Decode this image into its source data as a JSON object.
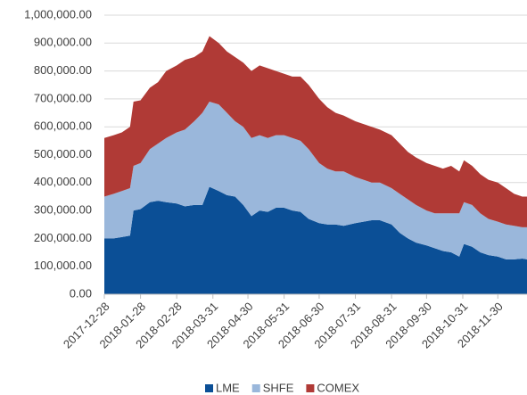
{
  "chart_data": {
    "type": "stacked_area",
    "x": [
      "2017-12-28",
      "2018-01-05",
      "2018-01-12",
      "2018-01-19",
      "2018-01-22",
      "2018-01-28",
      "2018-02-05",
      "2018-02-12",
      "2018-02-19",
      "2018-02-28",
      "2018-03-07",
      "2018-03-15",
      "2018-03-22",
      "2018-03-28",
      "2018-04-05",
      "2018-04-12",
      "2018-04-19",
      "2018-04-26",
      "2018-05-03",
      "2018-05-10",
      "2018-05-17",
      "2018-05-24",
      "2018-05-31",
      "2018-06-07",
      "2018-06-14",
      "2018-06-21",
      "2018-06-30",
      "2018-07-07",
      "2018-07-14",
      "2018-07-21",
      "2018-07-31",
      "2018-08-07",
      "2018-08-14",
      "2018-08-21",
      "2018-08-31",
      "2018-09-07",
      "2018-09-14",
      "2018-09-21",
      "2018-09-30",
      "2018-10-07",
      "2018-10-14",
      "2018-10-21",
      "2018-10-28",
      "2018-11-01",
      "2018-11-08",
      "2018-11-15",
      "2018-11-22",
      "2018-11-30",
      "2018-12-07",
      "2018-12-14",
      "2018-12-21",
      "2018-12-25"
    ],
    "series": [
      {
        "name": "LME",
        "color": "#0b4f96",
        "values": [
          200000,
          200000,
          205000,
          210000,
          300000,
          305000,
          330000,
          335000,
          330000,
          325000,
          315000,
          320000,
          320000,
          385000,
          370000,
          355000,
          350000,
          320000,
          280000,
          300000,
          295000,
          310000,
          310000,
          300000,
          295000,
          270000,
          255000,
          250000,
          250000,
          245000,
          255000,
          260000,
          265000,
          265000,
          250000,
          220000,
          200000,
          185000,
          175000,
          165000,
          155000,
          150000,
          135000,
          180000,
          170000,
          150000,
          140000,
          135000,
          125000,
          125000,
          128000,
          125000
        ]
      },
      {
        "name": "SHFE",
        "color": "#9ab7db",
        "values": [
          150000,
          160000,
          165000,
          170000,
          160000,
          165000,
          190000,
          205000,
          230000,
          255000,
          275000,
          300000,
          330000,
          305000,
          310000,
          295000,
          270000,
          280000,
          280000,
          270000,
          265000,
          260000,
          260000,
          260000,
          255000,
          250000,
          215000,
          200000,
          190000,
          195000,
          165000,
          150000,
          135000,
          135000,
          130000,
          140000,
          140000,
          135000,
          125000,
          125000,
          135000,
          140000,
          155000,
          150000,
          150000,
          140000,
          130000,
          125000,
          125000,
          120000,
          112000,
          115000
        ]
      },
      {
        "name": "COMEX",
        "color": "#b03a36",
        "values": [
          210000,
          210000,
          210000,
          220000,
          230000,
          225000,
          220000,
          220000,
          240000,
          240000,
          250000,
          230000,
          220000,
          235000,
          220000,
          220000,
          230000,
          230000,
          240000,
          250000,
          250000,
          230000,
          220000,
          220000,
          230000,
          230000,
          230000,
          220000,
          210000,
          200000,
          200000,
          200000,
          200000,
          190000,
          190000,
          180000,
          170000,
          170000,
          170000,
          170000,
          160000,
          170000,
          150000,
          150000,
          140000,
          140000,
          140000,
          140000,
          130000,
          115000,
          110000,
          110000
        ]
      }
    ],
    "xlim": [
      "2017-12-28",
      "2018-12-25"
    ],
    "xticks": [
      "2017-12-28",
      "2018-01-28",
      "2018-02-28",
      "2018-03-31",
      "2018-04-30",
      "2018-05-31",
      "2018-06-30",
      "2018-07-31",
      "2018-08-31",
      "2018-09-30",
      "2018-10-31",
      "2018-11-30"
    ],
    "ylim": [
      0,
      1000000
    ],
    "yticks": [
      {
        "value": 0,
        "label": "0.00"
      },
      {
        "value": 100000,
        "label": "100,000.00"
      },
      {
        "value": 200000,
        "label": "200,000.00"
      },
      {
        "value": 300000,
        "label": "300,000.00"
      },
      {
        "value": 400000,
        "label": "400,000.00"
      },
      {
        "value": 500000,
        "label": "500,000.00"
      },
      {
        "value": 600000,
        "label": "600,000.00"
      },
      {
        "value": 700000,
        "label": "700,000.00"
      },
      {
        "value": 800000,
        "label": "800,000.00"
      },
      {
        "value": 900000,
        "label": "900,000.00"
      },
      {
        "value": 1000000,
        "label": "1,000,000.00"
      }
    ],
    "grid": true,
    "legend": "bottom"
  }
}
